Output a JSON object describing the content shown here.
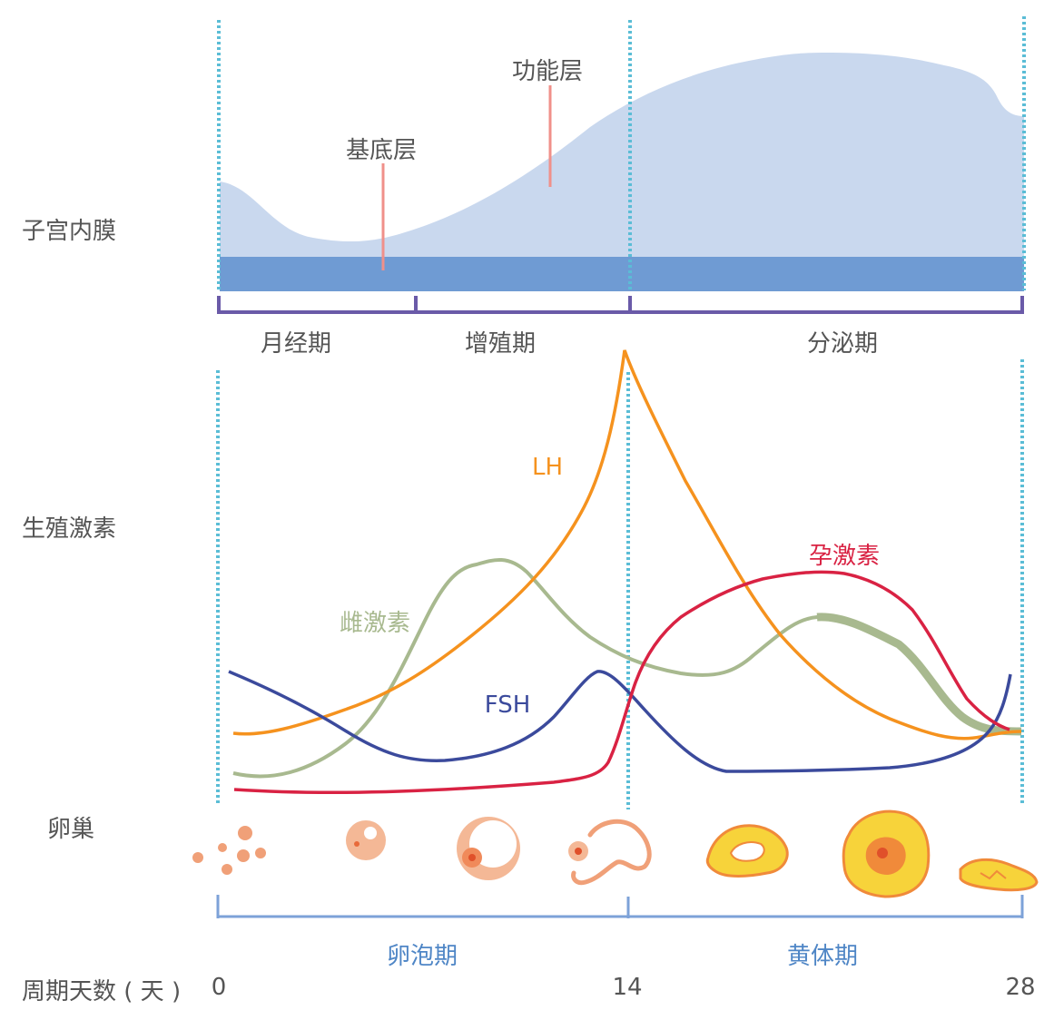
{
  "row_labels": {
    "endometrium": "子宫内膜",
    "hormones": "生殖激素",
    "ovary": "卵巢",
    "cycle_days": "周期天数 ( 天 )"
  },
  "endometrium_layers": {
    "basal": "基底层",
    "functional": "功能层"
  },
  "uterine_phases": [
    "月经期",
    "增殖期",
    "分泌期"
  ],
  "ovarian_phases": [
    "卵泡期",
    "黄体期"
  ],
  "day_ticks": [
    "0",
    "14",
    "28"
  ],
  "hormones": {
    "lh": "LH",
    "fsh": "FSH",
    "estrogen": "雌激素",
    "progesterone": "孕激素"
  },
  "colors": {
    "lh": "#f5921e",
    "fsh": "#3b4a9c",
    "estrogen": "#a8b98f",
    "progesterone": "#d92243",
    "functional_layer": "#c9d8ee",
    "basal_layer": "#6f9bd3",
    "bracket_uterine": "#6a5aa8",
    "bracket_ovarian": "#7da2d8",
    "guide_line": "#5bbdd6",
    "ovary_orange": "#f0a078",
    "corpus_yellow": "#f7d33a",
    "corpus_orange": "#f08a3a"
  }
}
